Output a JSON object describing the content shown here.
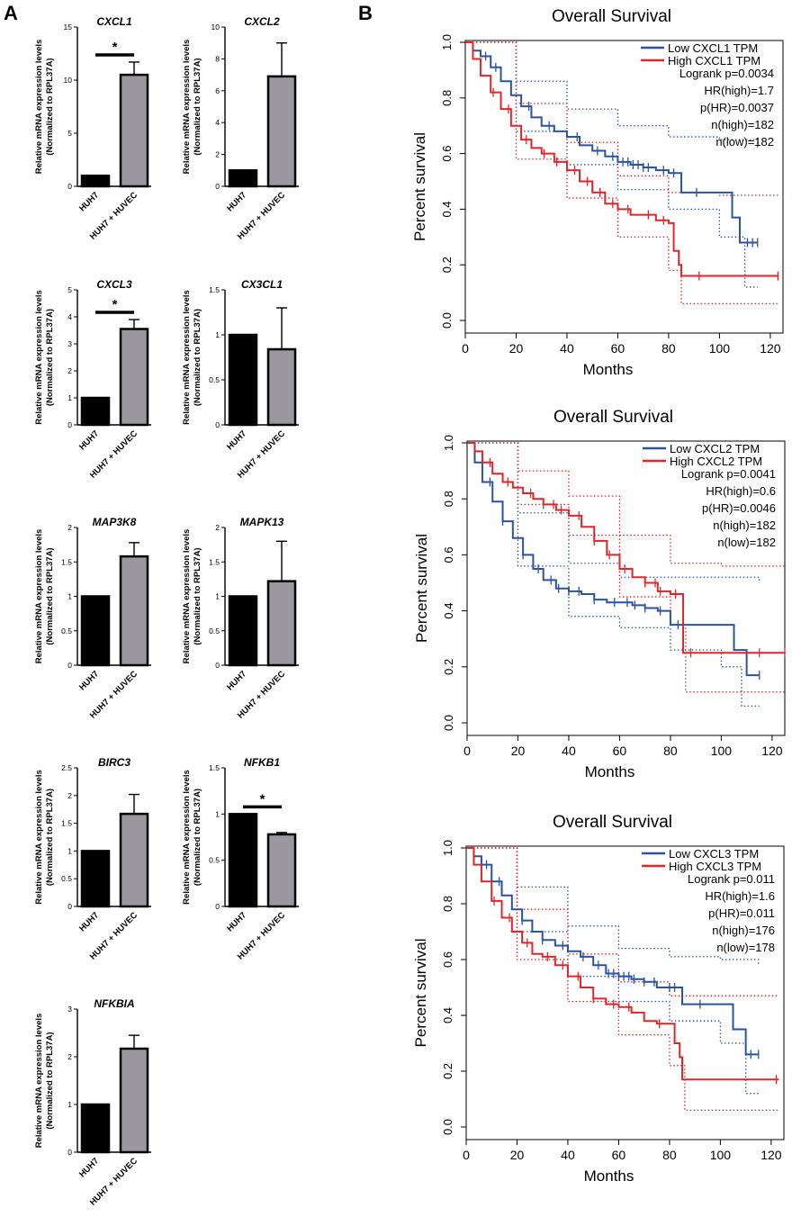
{
  "panels": {
    "a_label": "A",
    "b_label": "B"
  },
  "colors": {
    "huh7_bar": "#000000",
    "coculture_bar": "#9a979e",
    "low_curve": "#2b52a3",
    "high_curve": "#e0262b"
  },
  "bar_common": {
    "ylabel_line1": "Relative mRNA expression levels",
    "ylabel_line2": "(Normalized to RPL37A)",
    "categories": [
      "HUH7",
      "HUH7 + HUVEC"
    ],
    "significance_mark": "*"
  },
  "chart_data": [
    {
      "type": "bar",
      "title": "CXCL1",
      "categories": [
        "HUH7",
        "HUH7 + HUVEC"
      ],
      "values": [
        1,
        10.5
      ],
      "errors": [
        0,
        1.2
      ],
      "ylim": [
        0,
        15
      ],
      "yticks": [
        0,
        5,
        10,
        15
      ],
      "significant": true
    },
    {
      "type": "bar",
      "title": "CXCL2",
      "categories": [
        "HUH7",
        "HUH7 + HUVEC"
      ],
      "values": [
        1,
        6.9
      ],
      "errors": [
        0,
        2.1
      ],
      "ylim": [
        0,
        10
      ],
      "yticks": [
        0,
        2,
        4,
        6,
        8,
        10
      ],
      "significant": false
    },
    {
      "type": "bar",
      "title": "CXCL3",
      "categories": [
        "HUH7",
        "HUH7 + HUVEC"
      ],
      "values": [
        1,
        3.55
      ],
      "errors": [
        0,
        0.35
      ],
      "ylim": [
        0,
        5
      ],
      "yticks": [
        0,
        1,
        2,
        3,
        4,
        5
      ],
      "significant": true
    },
    {
      "type": "bar",
      "title": "CX3CL1",
      "categories": [
        "HUH7",
        "HUH7 + HUVEC"
      ],
      "values": [
        1,
        0.84
      ],
      "errors": [
        0,
        0.46
      ],
      "ylim": [
        0,
        1.5
      ],
      "yticks": [
        0.0,
        0.5,
        1.0,
        1.5
      ],
      "significant": false
    },
    {
      "type": "bar",
      "title": "MAP3K8",
      "categories": [
        "HUH7",
        "HUH7 + HUVEC"
      ],
      "values": [
        1,
        1.58
      ],
      "errors": [
        0,
        0.2
      ],
      "ylim": [
        0,
        2
      ],
      "yticks": [
        0.0,
        0.5,
        1.0,
        1.5,
        2.0
      ],
      "significant": false
    },
    {
      "type": "bar",
      "title": "MAPK13",
      "categories": [
        "HUH7",
        "HUH7 + HUVEC"
      ],
      "values": [
        1,
        1.22
      ],
      "errors": [
        0,
        0.58
      ],
      "ylim": [
        0,
        2
      ],
      "yticks": [
        0.0,
        0.5,
        1.0,
        1.5,
        2.0
      ],
      "significant": false
    },
    {
      "type": "bar",
      "title": "BIRC3",
      "categories": [
        "HUH7",
        "HUH7 + HUVEC"
      ],
      "values": [
        1,
        1.67
      ],
      "errors": [
        0,
        0.35
      ],
      "ylim": [
        0,
        2.5
      ],
      "yticks": [
        0.0,
        0.5,
        1.0,
        1.5,
        2.0,
        2.5
      ],
      "significant": false
    },
    {
      "type": "bar",
      "title": "NFKB1",
      "categories": [
        "HUH7",
        "HUH7 + HUVEC"
      ],
      "values": [
        1,
        0.78
      ],
      "errors": [
        0,
        0.02
      ],
      "ylim": [
        0,
        1.5
      ],
      "yticks": [
        0.0,
        0.5,
        1.0,
        1.5
      ],
      "significant": true
    },
    {
      "type": "bar",
      "title": "NFKBIA",
      "categories": [
        "HUH7",
        "HUH7 + HUVEC"
      ],
      "values": [
        1,
        2.17
      ],
      "errors": [
        0,
        0.28
      ],
      "ylim": [
        0,
        3
      ],
      "yticks": [
        0,
        1,
        2,
        3
      ],
      "significant": false
    },
    {
      "type": "line",
      "title": "Overall Survival",
      "xlabel": "Months",
      "ylabel": "Percent survival",
      "xlim": [
        0,
        125
      ],
      "ylim": [
        0,
        1.0
      ],
      "xticks": [
        0,
        20,
        40,
        60,
        80,
        100,
        120
      ],
      "yticks": [
        "0.0",
        "0.2",
        "0.4",
        "0.6",
        "0.8",
        "1.0"
      ],
      "legend": [
        "Low CXCL1 TPM",
        "High CXCL1 TPM"
      ],
      "stats": [
        "Logrank p=0.0034",
        "HR(high)=1.7",
        "p(HR)=0.0037",
        "n(high)=182",
        "n(low)=182"
      ],
      "series": [
        {
          "name": "Low CXCL1 TPM",
          "x": [
            0,
            3,
            6,
            10,
            14,
            18,
            22,
            26,
            30,
            35,
            40,
            45,
            50,
            55,
            60,
            65,
            70,
            75,
            80,
            85,
            90,
            95,
            100,
            105,
            108,
            115
          ],
          "y": [
            1.0,
            0.97,
            0.95,
            0.91,
            0.86,
            0.81,
            0.77,
            0.73,
            0.7,
            0.68,
            0.66,
            0.63,
            0.61,
            0.59,
            0.57,
            0.56,
            0.55,
            0.54,
            0.53,
            0.46,
            0.46,
            0.46,
            0.46,
            0.37,
            0.28,
            0.28
          ],
          "censor_x": [
            8,
            12,
            25,
            33,
            44,
            52,
            58,
            62,
            64,
            66,
            68,
            70,
            72,
            78,
            82,
            91,
            111,
            113,
            115
          ]
        },
        {
          "name": "High CXCL1 TPM",
          "x": [
            0,
            3,
            6,
            10,
            14,
            18,
            22,
            26,
            30,
            35,
            40,
            45,
            50,
            55,
            60,
            65,
            70,
            75,
            80,
            82,
            84,
            85,
            90,
            123
          ],
          "y": [
            1.0,
            0.94,
            0.88,
            0.82,
            0.76,
            0.7,
            0.65,
            0.62,
            0.6,
            0.57,
            0.54,
            0.5,
            0.46,
            0.42,
            0.4,
            0.38,
            0.38,
            0.36,
            0.35,
            0.25,
            0.2,
            0.16,
            0.16,
            0.16
          ],
          "censor_x": [
            11,
            17,
            24,
            31,
            36,
            43,
            48,
            53,
            58,
            64,
            72,
            78,
            92,
            123
          ]
        }
      ],
      "band_low": [
        [
          0,
          1.0
        ],
        [
          20,
          0.86
        ],
        [
          40,
          0.76
        ],
        [
          60,
          0.7
        ],
        [
          80,
          0.66
        ],
        [
          100,
          0.65
        ],
        [
          115,
          0.62
        ]
      ],
      "band_low_lower": [
        [
          0,
          1.0
        ],
        [
          20,
          0.68
        ],
        [
          40,
          0.56
        ],
        [
          60,
          0.47
        ],
        [
          80,
          0.4
        ],
        [
          100,
          0.3
        ],
        [
          110,
          0.12
        ],
        [
          115,
          0.12
        ]
      ],
      "band_high_upper": [
        [
          0,
          1.0
        ],
        [
          20,
          0.78
        ],
        [
          40,
          0.64
        ],
        [
          60,
          0.52
        ],
        [
          80,
          0.46
        ],
        [
          100,
          0.45
        ],
        [
          123,
          0.45
        ]
      ],
      "band_high_lower": [
        [
          0,
          1.0
        ],
        [
          20,
          0.58
        ],
        [
          40,
          0.44
        ],
        [
          60,
          0.3
        ],
        [
          80,
          0.18
        ],
        [
          85,
          0.06
        ],
        [
          123,
          0.06
        ]
      ]
    },
    {
      "type": "line",
      "title": "Overall Survival",
      "xlabel": "Months",
      "ylabel": "Percent survival",
      "xlim": [
        0,
        125
      ],
      "ylim": [
        0,
        1.0
      ],
      "xticks": [
        0,
        20,
        40,
        60,
        80,
        100,
        120
      ],
      "yticks": [
        "0.0",
        "0.2",
        "0.4",
        "0.6",
        "0.8",
        "1.0"
      ],
      "legend": [
        "Low CXCL2 TPM",
        "High CXCL2 TPM"
      ],
      "stats": [
        "Logrank p=0.0041",
        "HR(high)=0.6",
        "p(HR)=0.0046",
        "n(high)=182",
        "n(low)=182"
      ],
      "series": [
        {
          "name": "Low CXCL2 TPM",
          "x": [
            0,
            3,
            6,
            10,
            14,
            18,
            22,
            26,
            30,
            35,
            40,
            45,
            50,
            55,
            60,
            65,
            70,
            75,
            80,
            85,
            90,
            100,
            105,
            110,
            115
          ],
          "y": [
            1.0,
            0.93,
            0.86,
            0.79,
            0.72,
            0.66,
            0.6,
            0.55,
            0.51,
            0.48,
            0.47,
            0.46,
            0.44,
            0.43,
            0.43,
            0.42,
            0.41,
            0.4,
            0.35,
            0.35,
            0.35,
            0.35,
            0.26,
            0.17,
            0.17
          ],
          "censor_x": [
            9,
            14,
            22,
            28,
            33,
            36,
            40,
            44,
            50,
            58,
            63,
            66,
            70,
            76,
            83,
            115
          ]
        },
        {
          "name": "High CXCL2 TPM",
          "x": [
            0,
            3,
            6,
            10,
            14,
            18,
            22,
            26,
            30,
            35,
            40,
            45,
            50,
            55,
            60,
            65,
            70,
            75,
            80,
            85,
            90,
            100,
            110,
            125
          ],
          "y": [
            1.0,
            0.97,
            0.93,
            0.89,
            0.86,
            0.84,
            0.82,
            0.8,
            0.78,
            0.76,
            0.74,
            0.7,
            0.65,
            0.6,
            0.55,
            0.52,
            0.5,
            0.47,
            0.46,
            0.25,
            0.25,
            0.25,
            0.25,
            0.25
          ],
          "censor_x": [
            9,
            16,
            25,
            30,
            34,
            37,
            44,
            50,
            56,
            62,
            70,
            74,
            76,
            82,
            88,
            115,
            125
          ]
        }
      ],
      "band_low_upper": [
        [
          0,
          1.0
        ],
        [
          20,
          0.75
        ],
        [
          40,
          0.57
        ],
        [
          60,
          0.52
        ],
        [
          80,
          0.52
        ],
        [
          100,
          0.52
        ],
        [
          115,
          0.5
        ]
      ],
      "band_low_lower": [
        [
          0,
          1.0
        ],
        [
          20,
          0.56
        ],
        [
          40,
          0.38
        ],
        [
          60,
          0.34
        ],
        [
          80,
          0.26
        ],
        [
          100,
          0.2
        ],
        [
          108,
          0.06
        ],
        [
          115,
          0.06
        ]
      ],
      "band_high_upper": [
        [
          0,
          1.0
        ],
        [
          20,
          0.9
        ],
        [
          40,
          0.81
        ],
        [
          60,
          0.67
        ],
        [
          80,
          0.57
        ],
        [
          100,
          0.56
        ],
        [
          125,
          0.56
        ]
      ],
      "band_high_lower": [
        [
          0,
          1.0
        ],
        [
          20,
          0.78
        ],
        [
          40,
          0.67
        ],
        [
          60,
          0.45
        ],
        [
          80,
          0.35
        ],
        [
          86,
          0.11
        ],
        [
          125,
          0.11
        ]
      ]
    },
    {
      "type": "line",
      "title": "Overall Survival",
      "xlabel": "Months",
      "ylabel": "Percent survival",
      "xlim": [
        0,
        125
      ],
      "ylim": [
        0,
        1.0
      ],
      "xticks": [
        0,
        20,
        40,
        60,
        80,
        100,
        120
      ],
      "yticks": [
        "0.0",
        "0.2",
        "0.4",
        "0.6",
        "0.8",
        "1.0"
      ],
      "legend": [
        "Low CXCL3 TPM",
        "High CXCL3 TPM"
      ],
      "stats": [
        "Logrank p=0.011",
        "HR(high)=1.6",
        "p(HR)=0.011",
        "n(high)=176",
        "n(low)=178"
      ],
      "series": [
        {
          "name": "Low CXCL3 TPM",
          "x": [
            0,
            3,
            6,
            10,
            14,
            18,
            22,
            26,
            30,
            35,
            40,
            45,
            50,
            55,
            60,
            65,
            70,
            75,
            80,
            85,
            95,
            105,
            110,
            115
          ],
          "y": [
            1.0,
            0.97,
            0.94,
            0.88,
            0.83,
            0.78,
            0.74,
            0.7,
            0.67,
            0.65,
            0.63,
            0.61,
            0.58,
            0.55,
            0.54,
            0.53,
            0.52,
            0.5,
            0.5,
            0.44,
            0.44,
            0.35,
            0.26,
            0.26
          ],
          "censor_x": [
            8,
            13,
            22,
            30,
            38,
            46,
            52,
            56,
            58,
            60,
            62,
            64,
            66,
            70,
            74,
            80,
            82,
            92,
            112,
            115
          ]
        },
        {
          "name": "High CXCL3 TPM",
          "x": [
            0,
            3,
            6,
            10,
            14,
            18,
            22,
            26,
            30,
            35,
            40,
            45,
            50,
            55,
            60,
            65,
            70,
            75,
            80,
            82,
            84,
            85,
            95,
            123
          ],
          "y": [
            1.0,
            0.94,
            0.88,
            0.81,
            0.75,
            0.7,
            0.66,
            0.62,
            0.61,
            0.58,
            0.54,
            0.5,
            0.46,
            0.44,
            0.43,
            0.41,
            0.38,
            0.37,
            0.37,
            0.3,
            0.25,
            0.17,
            0.17,
            0.17
          ],
          "censor_x": [
            11,
            17,
            24,
            32,
            38,
            44,
            50,
            58,
            64,
            76,
            122
          ]
        }
      ],
      "band_low_upper": [
        [
          0,
          1.0
        ],
        [
          20,
          0.86
        ],
        [
          40,
          0.72
        ],
        [
          60,
          0.64
        ],
        [
          80,
          0.61
        ],
        [
          100,
          0.6
        ],
        [
          115,
          0.58
        ]
      ],
      "band_low_lower": [
        [
          0,
          1.0
        ],
        [
          20,
          0.7
        ],
        [
          40,
          0.54
        ],
        [
          60,
          0.45
        ],
        [
          80,
          0.38
        ],
        [
          100,
          0.3
        ],
        [
          110,
          0.12
        ],
        [
          115,
          0.12
        ]
      ],
      "band_high_upper": [
        [
          0,
          1.0
        ],
        [
          20,
          0.78
        ],
        [
          40,
          0.62
        ],
        [
          60,
          0.52
        ],
        [
          80,
          0.47
        ],
        [
          100,
          0.47
        ],
        [
          123,
          0.47
        ]
      ],
      "band_high_lower": [
        [
          0,
          1.0
        ],
        [
          20,
          0.6
        ],
        [
          40,
          0.45
        ],
        [
          60,
          0.33
        ],
        [
          80,
          0.22
        ],
        [
          86,
          0.06
        ],
        [
          123,
          0.06
        ]
      ]
    }
  ]
}
